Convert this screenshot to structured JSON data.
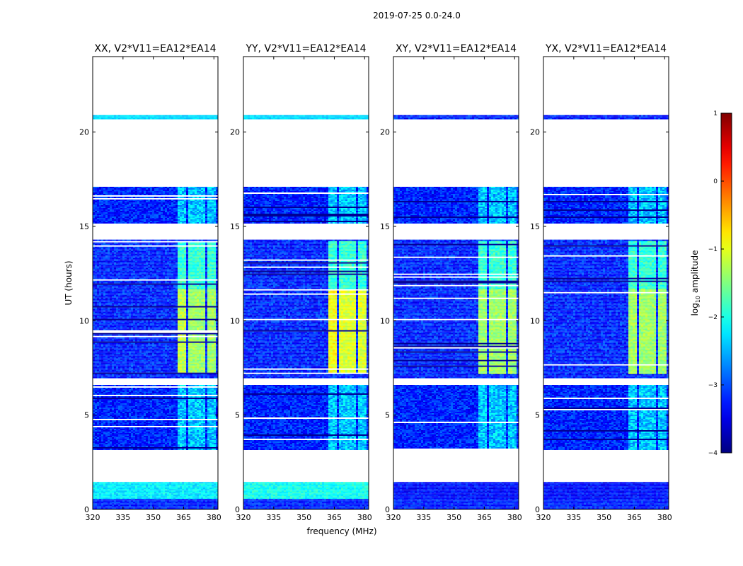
{
  "figure": {
    "suptitle": "2019-07-25 0.0-24.0",
    "xlabel": "frequency (MHz)",
    "ylabel": "UT (hours)"
  },
  "chart_data": {
    "type": "heatmap",
    "title": "2019-07-25 0.0-24.0",
    "xlabel": "frequency (MHz)",
    "ylabel": "UT (hours)",
    "xlim": [
      320,
      382
    ],
    "ylim": [
      0,
      24
    ],
    "xticks": [
      320,
      335,
      350,
      365,
      380
    ],
    "yticks": [
      0,
      5,
      10,
      15,
      20
    ],
    "colorbar": {
      "label": "log10 amplitude",
      "label_base": "log",
      "label_sub": "10",
      "label_rest": " amplitude",
      "range": [
        -4,
        1
      ],
      "ticks": [
        -4,
        -3,
        -2,
        -1,
        0,
        1
      ],
      "colormap": "jet"
    },
    "panels": [
      {
        "title": "XX, V2*V11=EA12*EA14",
        "pol": "XX",
        "low_band_level": -2.2
      },
      {
        "title": "YY, V2*V11=EA12*EA14",
        "pol": "YY",
        "low_band_level": -2.05
      },
      {
        "title": "XY, V2*V11=EA12*EA14",
        "pol": "XY",
        "low_band_level": -3.3
      },
      {
        "title": "YX, V2*V11=EA12*EA14",
        "pol": "YX",
        "low_band_level": -3.3
      }
    ],
    "data_blocks_hours": [
      [
        0.0,
        1.45
      ],
      [
        3.2,
        6.6
      ],
      [
        7.0,
        14.3
      ],
      [
        15.2,
        17.1
      ],
      [
        20.7,
        20.9
      ]
    ],
    "rfi_band_mhz": [
      361,
      380
    ],
    "strong_rfi_hours": [
      7.2,
      11.7
    ],
    "background_level": -3.2
  }
}
